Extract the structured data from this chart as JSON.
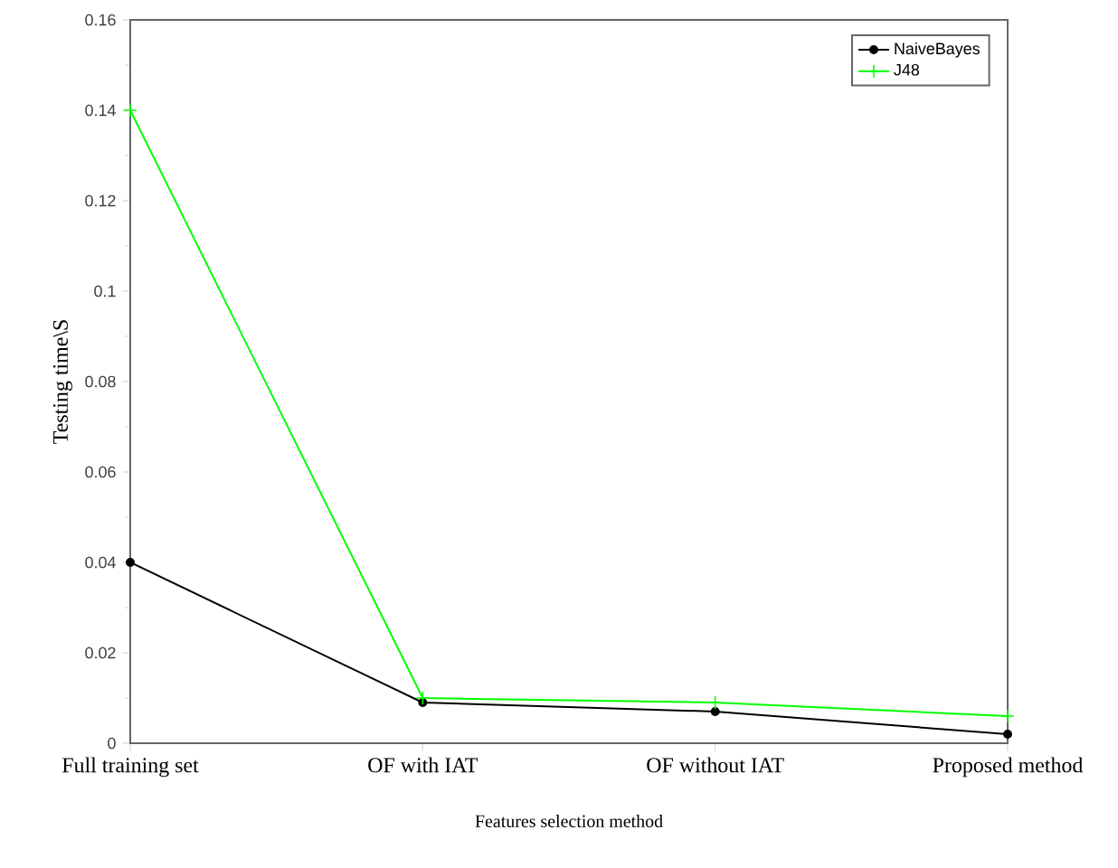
{
  "chart_data": {
    "type": "line",
    "xlabel": "Features selection method",
    "ylabel": "Testing time\\S",
    "categories": [
      "Full training set",
      "OF with IAT",
      "OF without IAT",
      "Proposed method"
    ],
    "series": [
      {
        "name": "NaiveBayes",
        "color": "#000000",
        "marker": "circle",
        "values": [
          0.04,
          0.009,
          0.007,
          0.002
        ]
      },
      {
        "name": "J48",
        "color": "#00ff00",
        "marker": "cross",
        "values": [
          0.14,
          0.01,
          0.009,
          0.006
        ]
      }
    ],
    "ylim": [
      0,
      0.16
    ],
    "yticks": [
      0,
      0.02,
      0.04,
      0.06,
      0.08,
      0.1,
      0.12,
      0.14,
      0.16
    ],
    "grid": false,
    "legend": "top right"
  }
}
